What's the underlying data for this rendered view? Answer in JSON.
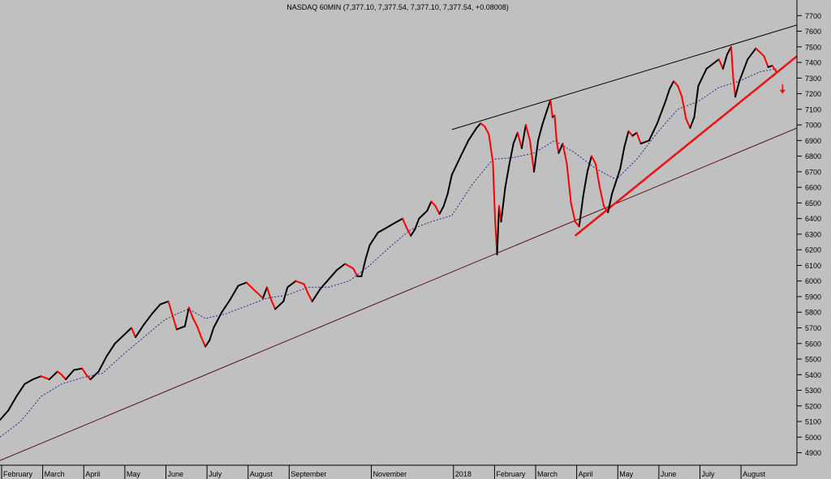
{
  "chart_data": {
    "type": "line",
    "title": "NASDAQ 60MIN (7,377.10, 7,377.54, 7,377.10, 7,377.54, +0.08008)",
    "y_ticks": [
      4900,
      5000,
      5100,
      5200,
      5300,
      5400,
      5500,
      5600,
      5700,
      5800,
      5900,
      6000,
      6100,
      6200,
      6300,
      6400,
      6500,
      6600,
      6700,
      6800,
      6900,
      7000,
      7100,
      7200,
      7300,
      7400,
      7500,
      7600,
      7700
    ],
    "ylim": [
      4820,
      7800
    ],
    "x_range": [
      0,
      19.4
    ],
    "x_labels": [
      {
        "label": "February",
        "x": 0
      },
      {
        "label": "March",
        "x": 1
      },
      {
        "label": "April",
        "x": 2
      },
      {
        "label": "May",
        "x": 3
      },
      {
        "label": "June",
        "x": 4
      },
      {
        "label": "July",
        "x": 5
      },
      {
        "label": "August",
        "x": 6
      },
      {
        "label": "September",
        "x": 7
      },
      {
        "label": "November",
        "x": 9
      },
      {
        "label": "2018",
        "x": 11
      },
      {
        "label": "February",
        "x": 12
      },
      {
        "label": "March",
        "x": 13
      },
      {
        "label": "April",
        "x": 14
      },
      {
        "label": "May",
        "x": 15
      },
      {
        "label": "June",
        "x": 16
      },
      {
        "label": "July",
        "x": 17
      },
      {
        "label": "August",
        "x": 18
      }
    ],
    "series": [
      {
        "role": "price",
        "color": "#000000",
        "down_color": "#ff0000",
        "points": [
          [
            0,
            5110
          ],
          [
            0.2,
            5170
          ],
          [
            0.4,
            5260
          ],
          [
            0.6,
            5340
          ],
          [
            0.8,
            5370
          ],
          [
            1.0,
            5390
          ],
          [
            1.2,
            5370
          ],
          [
            1.4,
            5420
          ],
          [
            1.5,
            5400
          ],
          [
            1.6,
            5370
          ],
          [
            1.8,
            5430
          ],
          [
            2.0,
            5440
          ],
          [
            2.1,
            5400
          ],
          [
            2.2,
            5370
          ],
          [
            2.4,
            5420
          ],
          [
            2.6,
            5520
          ],
          [
            2.8,
            5600
          ],
          [
            3.0,
            5650
          ],
          [
            3.2,
            5700
          ],
          [
            3.3,
            5640
          ],
          [
            3.5,
            5720
          ],
          [
            3.7,
            5790
          ],
          [
            3.9,
            5850
          ],
          [
            4.1,
            5870
          ],
          [
            4.2,
            5780
          ],
          [
            4.3,
            5690
          ],
          [
            4.5,
            5710
          ],
          [
            4.6,
            5830
          ],
          [
            4.7,
            5760
          ],
          [
            4.8,
            5710
          ],
          [
            4.9,
            5640
          ],
          [
            5.0,
            5580
          ],
          [
            5.1,
            5620
          ],
          [
            5.2,
            5700
          ],
          [
            5.4,
            5800
          ],
          [
            5.6,
            5880
          ],
          [
            5.8,
            5970
          ],
          [
            6.0,
            5990
          ],
          [
            6.2,
            5940
          ],
          [
            6.4,
            5890
          ],
          [
            6.5,
            5960
          ],
          [
            6.6,
            5880
          ],
          [
            6.7,
            5820
          ],
          [
            6.9,
            5870
          ],
          [
            7.0,
            5960
          ],
          [
            7.2,
            6000
          ],
          [
            7.4,
            5980
          ],
          [
            7.5,
            5920
          ],
          [
            7.6,
            5870
          ],
          [
            7.8,
            5950
          ],
          [
            8.0,
            6010
          ],
          [
            8.2,
            6070
          ],
          [
            8.4,
            6110
          ],
          [
            8.6,
            6080
          ],
          [
            8.7,
            6030
          ],
          [
            8.8,
            6030
          ],
          [
            8.9,
            6140
          ],
          [
            9.0,
            6230
          ],
          [
            9.2,
            6310
          ],
          [
            9.4,
            6340
          ],
          [
            9.6,
            6370
          ],
          [
            9.8,
            6400
          ],
          [
            9.9,
            6340
          ],
          [
            10.0,
            6290
          ],
          [
            10.1,
            6330
          ],
          [
            10.2,
            6400
          ],
          [
            10.4,
            6450
          ],
          [
            10.5,
            6510
          ],
          [
            10.6,
            6480
          ],
          [
            10.7,
            6430
          ],
          [
            10.8,
            6480
          ],
          [
            10.9,
            6560
          ],
          [
            11.0,
            6680
          ],
          [
            11.2,
            6790
          ],
          [
            11.4,
            6900
          ],
          [
            11.6,
            6980
          ],
          [
            11.7,
            7010
          ],
          [
            11.8,
            6990
          ],
          [
            11.9,
            6940
          ],
          [
            12.0,
            6760
          ],
          [
            12.05,
            6400
          ],
          [
            12.1,
            6170
          ],
          [
            12.15,
            6480
          ],
          [
            12.2,
            6380
          ],
          [
            12.3,
            6600
          ],
          [
            12.4,
            6750
          ],
          [
            12.5,
            6880
          ],
          [
            12.6,
            6950
          ],
          [
            12.7,
            6850
          ],
          [
            12.8,
            7000
          ],
          [
            12.9,
            6900
          ],
          [
            13.0,
            6700
          ],
          [
            13.1,
            6900
          ],
          [
            13.2,
            7000
          ],
          [
            13.3,
            7080
          ],
          [
            13.4,
            7160
          ],
          [
            13.45,
            7050
          ],
          [
            13.5,
            7060
          ],
          [
            13.55,
            6900
          ],
          [
            13.6,
            6820
          ],
          [
            13.7,
            6880
          ],
          [
            13.8,
            6750
          ],
          [
            13.9,
            6500
          ],
          [
            14.0,
            6380
          ],
          [
            14.1,
            6350
          ],
          [
            14.2,
            6550
          ],
          [
            14.3,
            6700
          ],
          [
            14.4,
            6800
          ],
          [
            14.5,
            6750
          ],
          [
            14.6,
            6600
          ],
          [
            14.7,
            6480
          ],
          [
            14.8,
            6440
          ],
          [
            14.9,
            6560
          ],
          [
            15.0,
            6640
          ],
          [
            15.1,
            6720
          ],
          [
            15.2,
            6860
          ],
          [
            15.3,
            6960
          ],
          [
            15.4,
            6930
          ],
          [
            15.5,
            6950
          ],
          [
            15.6,
            6880
          ],
          [
            15.8,
            6900
          ],
          [
            16.0,
            7010
          ],
          [
            16.2,
            7150
          ],
          [
            16.3,
            7230
          ],
          [
            16.4,
            7280
          ],
          [
            16.5,
            7250
          ],
          [
            16.6,
            7180
          ],
          [
            16.7,
            7040
          ],
          [
            16.8,
            6980
          ],
          [
            16.9,
            7050
          ],
          [
            17.0,
            7250
          ],
          [
            17.2,
            7360
          ],
          [
            17.4,
            7400
          ],
          [
            17.5,
            7420
          ],
          [
            17.6,
            7360
          ],
          [
            17.7,
            7450
          ],
          [
            17.8,
            7500
          ],
          [
            17.85,
            7300
          ],
          [
            17.9,
            7180
          ],
          [
            18.0,
            7280
          ],
          [
            18.2,
            7420
          ],
          [
            18.4,
            7490
          ],
          [
            18.6,
            7440
          ],
          [
            18.7,
            7370
          ],
          [
            18.8,
            7380
          ],
          [
            18.9,
            7340
          ]
        ]
      },
      {
        "role": "moving-average",
        "color": "#2b2b8c",
        "dashed": true,
        "points": [
          [
            0,
            5000
          ],
          [
            0.5,
            5100
          ],
          [
            1.0,
            5260
          ],
          [
            1.5,
            5340
          ],
          [
            2.0,
            5380
          ],
          [
            2.5,
            5410
          ],
          [
            3.0,
            5530
          ],
          [
            3.5,
            5640
          ],
          [
            4.0,
            5750
          ],
          [
            4.3,
            5790
          ],
          [
            4.6,
            5820
          ],
          [
            5.0,
            5760
          ],
          [
            5.5,
            5790
          ],
          [
            6.0,
            5840
          ],
          [
            6.5,
            5890
          ],
          [
            7.0,
            5910
          ],
          [
            7.5,
            5960
          ],
          [
            8.0,
            5960
          ],
          [
            8.5,
            6000
          ],
          [
            9.0,
            6100
          ],
          [
            9.5,
            6220
          ],
          [
            10.0,
            6330
          ],
          [
            10.5,
            6380
          ],
          [
            11.0,
            6420
          ],
          [
            11.5,
            6620
          ],
          [
            12.0,
            6780
          ],
          [
            12.5,
            6790
          ],
          [
            13.0,
            6820
          ],
          [
            13.5,
            6900
          ],
          [
            14.0,
            6820
          ],
          [
            14.5,
            6720
          ],
          [
            15.0,
            6650
          ],
          [
            15.5,
            6780
          ],
          [
            16.0,
            6950
          ],
          [
            16.5,
            7100
          ],
          [
            17.0,
            7150
          ],
          [
            17.5,
            7240
          ],
          [
            18.0,
            7280
          ],
          [
            18.5,
            7340
          ],
          [
            18.9,
            7360
          ]
        ]
      }
    ],
    "trendlines": [
      {
        "role": "upper-channel",
        "color": "#000000",
        "from": [
          11.0,
          6970
        ],
        "to": [
          19.4,
          7640
        ]
      },
      {
        "role": "long-term-support",
        "color": "#5a1010",
        "from": [
          0,
          4850
        ],
        "to": [
          19.4,
          6980
        ]
      },
      {
        "role": "support",
        "color": "#ee1111",
        "from": [
          14.0,
          6290
        ],
        "to": [
          19.4,
          7440
        ]
      }
    ],
    "markers": [
      {
        "type": "down-arrow",
        "color": "#ee1111",
        "x": 19.05,
        "y": 7230
      }
    ]
  }
}
